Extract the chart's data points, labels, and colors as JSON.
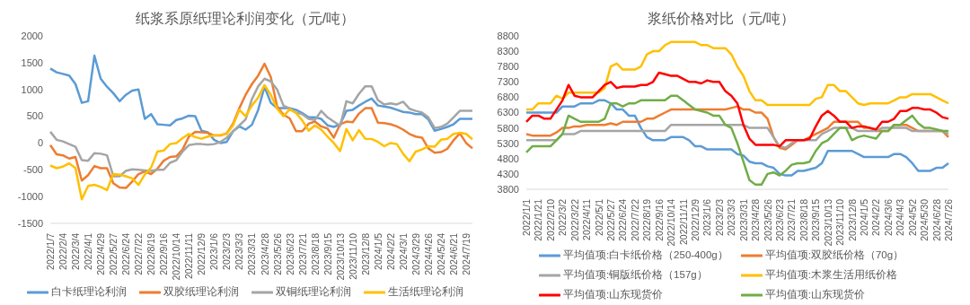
{
  "chart_data": [
    {
      "type": "line",
      "title": "纸浆系原纸理论利润变化（元/吨）",
      "legend": "bottom",
      "categories": [
        "2022/1/7",
        null,
        "2022/2/4",
        null,
        "2022/3/4",
        null,
        "2022/4/1",
        null,
        "2022/4/29",
        null,
        "2022/5/27",
        null,
        "2022/6/24",
        null,
        "2022/7/22",
        null,
        "2022/8/19",
        null,
        "2022/9/16",
        null,
        "2022/10/14",
        null,
        "2022/11/11",
        null,
        "2022/12/9",
        null,
        "2023/1/6",
        null,
        "2023/2/3",
        null,
        "2023/3/3",
        null,
        "2023/3/31",
        null,
        "2023/4/28",
        null,
        "2023/5/26",
        null,
        "2023/6/23",
        null,
        "2023/7/21",
        null,
        "2023/8/18",
        null,
        "2023/9/15",
        null,
        "2023/10/13",
        null,
        "2023/11/10",
        null,
        "2023/12/8",
        null,
        "2024/1/5",
        null,
        "2024/2/2",
        null,
        "2024/3/1",
        null,
        "2024/3/29",
        null,
        "2024/4/26",
        null,
        "2024/5/24",
        null,
        "2024/6/21",
        null,
        "2024/7/19",
        null
      ],
      "ylim": [
        -1500,
        2000
      ],
      "yticks": [
        -1500,
        -1000,
        -500,
        0,
        500,
        1000,
        1500,
        2000
      ],
      "series": [
        {
          "name": "白卡纸理论利润",
          "color": "#5b9bd5",
          "values": [
            1390,
            1320,
            1290,
            1260,
            1100,
            750,
            780,
            1630,
            1200,
            1050,
            930,
            780,
            900,
            980,
            1000,
            450,
            540,
            350,
            340,
            330,
            430,
            460,
            510,
            500,
            230,
            200,
            60,
            0,
            20,
            220,
            310,
            250,
            340,
            620,
            1050,
            750,
            650,
            650,
            650,
            620,
            560,
            480,
            480,
            450,
            330,
            300,
            350,
            600,
            620,
            700,
            770,
            830,
            700,
            680,
            660,
            620,
            580,
            570,
            540,
            540,
            440,
            230,
            260,
            300,
            350,
            450,
            450,
            450
          ]
        },
        {
          "name": "双胶纸理论利润",
          "color": "#ed7d31",
          "values": [
            -40,
            -210,
            -230,
            -290,
            -260,
            -700,
            -600,
            -430,
            -470,
            -470,
            -750,
            -830,
            -840,
            -720,
            -580,
            -530,
            -580,
            -480,
            -330,
            -260,
            -250,
            -120,
            120,
            210,
            200,
            190,
            140,
            140,
            180,
            360,
            650,
            900,
            1100,
            1260,
            1480,
            1230,
            680,
            530,
            460,
            220,
            220,
            360,
            400,
            310,
            270,
            100,
            350,
            400,
            390,
            550,
            650,
            650,
            380,
            370,
            350,
            310,
            250,
            170,
            120,
            100,
            -100,
            -180,
            -170,
            -110,
            50,
            180,
            0,
            -100
          ]
        },
        {
          "name": "双铜纸理论利润",
          "color": "#a5a5a5",
          "values": [
            210,
            60,
            30,
            -20,
            -70,
            -320,
            -330,
            -190,
            -200,
            -230,
            -620,
            -620,
            -520,
            -490,
            -500,
            -510,
            -520,
            -500,
            -500,
            -370,
            -320,
            -160,
            -40,
            -20,
            -20,
            -30,
            -20,
            20,
            100,
            220,
            330,
            440,
            820,
            1060,
            1200,
            1150,
            1000,
            700,
            640,
            570,
            540,
            450,
            430,
            600,
            480,
            400,
            320,
            780,
            740,
            920,
            1060,
            1060,
            800,
            720,
            740,
            720,
            770,
            640,
            600,
            570,
            480,
            280,
            300,
            360,
            480,
            600,
            600,
            600
          ]
        },
        {
          "name": "生活纸理论利润",
          "color": "#ffc000",
          "values": [
            -420,
            -470,
            -440,
            -380,
            -470,
            -1050,
            -800,
            -780,
            -820,
            -880,
            -580,
            -590,
            -620,
            -660,
            -780,
            -590,
            -460,
            -160,
            -140,
            -20,
            0,
            90,
            170,
            110,
            80,
            120,
            140,
            150,
            170,
            330,
            620,
            500,
            700,
            850,
            1080,
            900,
            640,
            500,
            630,
            560,
            420,
            230,
            330,
            250,
            120,
            0,
            -150,
            260,
            50,
            240,
            80,
            75,
            20,
            -60,
            0,
            -20,
            -200,
            -340,
            -160,
            -120,
            -60,
            -70,
            60,
            80,
            170,
            190,
            170,
            70
          ]
        }
      ]
    },
    {
      "type": "line",
      "title": "浆纸价格对比（元/吨）",
      "legend": "bottom",
      "categories": [
        "2022/1/1",
        null,
        "2022/1/21",
        null,
        "2022/2/10",
        null,
        "2022/3/2",
        null,
        "2022/3/22",
        null,
        "2022/4/11",
        null,
        "2022/5/1",
        null,
        "2022/5/27",
        null,
        "2022/6/24",
        null,
        "2022/7/22",
        null,
        "2022/8/19",
        null,
        "2022/9/16",
        null,
        "2022/10/14",
        null,
        "2022/11/11",
        null,
        "2022/12/9",
        null,
        "2023/1/6",
        null,
        "2023/2/3",
        null,
        "2023/3/3",
        null,
        "2023/3/31",
        null,
        "2023/4/28",
        null,
        "2023/5/26",
        null,
        "2023/6/23",
        null,
        "2023/7/21",
        null,
        "2023/8/18",
        null,
        "2023/9/15",
        null,
        "2023/10/13",
        null,
        "2023/11/10",
        null,
        "2023/12/8",
        null,
        "2024/1/5",
        null,
        "2024/2/2",
        null,
        "2024/3/6",
        null,
        "2024/4/3",
        null,
        "2024/5/2",
        null,
        "2024/5/30",
        null,
        "2024/6/28",
        null,
        "2024/7/26"
      ],
      "ylim": [
        3800,
        8800
      ],
      "yticks": [
        3800,
        4300,
        4800,
        5300,
        5800,
        6300,
        6800,
        7300,
        7800,
        8300,
        8800
      ],
      "series": [
        {
          "name": "平均值项:白卡纸价格（250-400g）",
          "color": "#5b9bd5",
          "values": [
            6300,
            6300,
            6300,
            6300,
            6300,
            6300,
            6500,
            6500,
            6500,
            6600,
            6600,
            6600,
            6700,
            6700,
            6600,
            6400,
            6400,
            6200,
            6200,
            5800,
            5500,
            5400,
            5400,
            5400,
            5500,
            5500,
            5500,
            5400,
            5200,
            5200,
            5100,
            5100,
            5100,
            5100,
            5100,
            4950,
            4900,
            4700,
            4650,
            4650,
            4550,
            4500,
            4300,
            4250,
            4250,
            4400,
            4400,
            4450,
            4500,
            4650,
            5050,
            5050,
            5050,
            5050,
            5050,
            4950,
            4850,
            4850,
            4850,
            4850,
            4850,
            4950,
            4950,
            4850,
            4650,
            4400,
            4400,
            4400,
            4500,
            4500,
            4650
          ]
        },
        {
          "name": "平均值项:双胶纸价格（70g）",
          "color": "#ed7d31",
          "values": [
            5600,
            5550,
            5550,
            5550,
            5550,
            5650,
            5800,
            5800,
            5850,
            5850,
            5900,
            5900,
            5900,
            5900,
            5950,
            5900,
            6000,
            6000,
            6000,
            6000,
            6100,
            6100,
            6200,
            6300,
            6400,
            6400,
            6400,
            6400,
            6400,
            6400,
            6400,
            6400,
            6400,
            6400,
            6450,
            6500,
            6400,
            6400,
            6300,
            6300,
            6100,
            5500,
            5150,
            5100,
            5250,
            5400,
            5400,
            5500,
            5600,
            5700,
            5800,
            6000,
            6000,
            6000,
            6000,
            6000,
            5800,
            5800,
            5700,
            5700,
            5700,
            5900,
            5900,
            5900,
            5800,
            5700,
            5700,
            5700,
            5700,
            5700,
            5500
          ]
        },
        {
          "name": "平均值项:铜版纸价格（157g）",
          "color": "#a5a5a5",
          "values": [
            5400,
            5400,
            5400,
            5400,
            5400,
            5400,
            5600,
            5600,
            5600,
            5700,
            5700,
            5700,
            5700,
            5700,
            5700,
            5700,
            5700,
            5700,
            5700,
            5700,
            5700,
            5700,
            5700,
            5700,
            5900,
            5900,
            5900,
            5900,
            5900,
            5900,
            5900,
            5900,
            5900,
            5900,
            5900,
            5900,
            5900,
            5800,
            5800,
            5800,
            5800,
            5500,
            5200,
            5150,
            5300,
            5400,
            5400,
            5400,
            5400,
            5600,
            5700,
            5800,
            5800,
            5800,
            5800,
            5700,
            5700,
            5700,
            5700,
            5800,
            5800,
            5800,
            5800,
            5800,
            5700,
            5700,
            5700,
            5700,
            5700,
            5700,
            5600
          ]
        },
        {
          "name": "平均值项:木浆生活用纸价格",
          "color": "#ffc000",
          "values": [
            6400,
            6400,
            6600,
            6600,
            6600,
            6850,
            6750,
            6950,
            6950,
            6950,
            6950,
            6950,
            6950,
            7100,
            7800,
            7900,
            7700,
            7700,
            7700,
            7800,
            8200,
            8300,
            8300,
            8500,
            8600,
            8600,
            8600,
            8600,
            8600,
            8500,
            8500,
            8400,
            8400,
            8400,
            8200,
            7800,
            7500,
            7000,
            6700,
            6700,
            6550,
            6550,
            6550,
            6550,
            6550,
            6550,
            6550,
            6550,
            6750,
            6800,
            7200,
            7200,
            7000,
            7000,
            6800,
            6600,
            6550,
            6600,
            6600,
            6600,
            6600,
            6700,
            6800,
            6800,
            6900,
            6900,
            6900,
            6900,
            6800,
            6700,
            6600
          ]
        },
        {
          "name": "平均值项:山东现货价",
          "color": "#ff0000",
          "values": [
            6000,
            6200,
            6200,
            6100,
            6100,
            6400,
            6700,
            7200,
            6850,
            6800,
            6800,
            6800,
            7000,
            7200,
            7300,
            7100,
            7150,
            7150,
            7150,
            7200,
            7200,
            7300,
            7600,
            7550,
            7500,
            7500,
            7400,
            7300,
            7300,
            7250,
            7350,
            7300,
            7300,
            7000,
            6850,
            6600,
            5900,
            5450,
            5250,
            5250,
            5250,
            5250,
            5200,
            5400,
            5400,
            5400,
            5400,
            5450,
            5850,
            6200,
            6350,
            6200,
            6000,
            6000,
            5800,
            5850,
            5850,
            5800,
            5750,
            6000,
            6000,
            6100,
            6350,
            6350,
            6450,
            6450,
            6400,
            6400,
            6300,
            6150,
            6100
          ]
        },
        {
          "name": "平均值项:山东现货价",
          "color": "#70ad47",
          "values": [
            5000,
            5200,
            5200,
            5200,
            5200,
            5400,
            5600,
            6200,
            6100,
            6000,
            6000,
            6000,
            6000,
            6100,
            6600,
            6600,
            6500,
            6600,
            6600,
            6700,
            6700,
            6700,
            6700,
            6700,
            6850,
            6850,
            6700,
            6550,
            6400,
            6350,
            6300,
            6200,
            6200,
            5900,
            5800,
            5300,
            4700,
            4100,
            3950,
            3950,
            4300,
            4350,
            4250,
            4400,
            4600,
            4650,
            4650,
            4700,
            5050,
            5300,
            5400,
            5600,
            5800,
            5800,
            5400,
            5500,
            5550,
            5500,
            5450,
            5700,
            5700,
            5900,
            5900,
            6050,
            6200,
            5950,
            5800,
            5800,
            5750,
            5700,
            5700
          ]
        }
      ]
    }
  ]
}
